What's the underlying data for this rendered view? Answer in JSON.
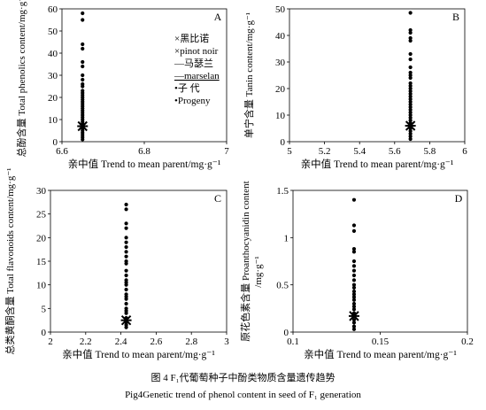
{
  "figure": {
    "caption_zh": "图 4 F₁代葡萄种子中酚类物质含量遗传趋势",
    "caption_en": "Pig4Genetic trend of phenol content in seed of F₁ generation"
  },
  "chart_data": [
    {
      "type": "scatter",
      "panel_label": "A",
      "xlabel": "亲中值 Trend to mean parent/mg·g⁻¹",
      "ylabel_zh": "总酚含量",
      "ylabel_en": "Total phenolics content/mg·g⁻¹",
      "xlim": [
        6.6,
        7
      ],
      "ylim": [
        0,
        60
      ],
      "xticks": [
        "6.6",
        "6.8",
        "7"
      ],
      "yticks": [
        "0",
        "10",
        "20",
        "30",
        "40",
        "50",
        "60"
      ],
      "grid": false,
      "legend": {
        "placement": "inside-right",
        "entries": [
          "×黑比诺",
          "×pinot noir",
          "—马瑟兰",
          "—marselan",
          "•子 代",
          "•Progeny"
        ]
      },
      "series": [
        {
          "name": "Progeny",
          "marker": "dot",
          "x": 6.65,
          "y": [
            58,
            55,
            44,
            42,
            36,
            34,
            30,
            28,
            26,
            25,
            23,
            22,
            21,
            20,
            19,
            18,
            17,
            16,
            15,
            14,
            13,
            12,
            11,
            10,
            9,
            8,
            7,
            6,
            5,
            4,
            3,
            2,
            1
          ]
        },
        {
          "name": "pinot noir",
          "marker": "x",
          "x": 6.65,
          "y": [
            7
          ]
        },
        {
          "name": "marselan",
          "marker": "dash",
          "x": 6.65,
          "y": [
            7
          ]
        }
      ]
    },
    {
      "type": "scatter",
      "panel_label": "B",
      "xlabel": "亲中值 Trend to mean parent/mg·g⁻¹",
      "ylabel_zh": "单宁含量",
      "ylabel_en": "Tanin content/mg·g⁻¹",
      "xlim": [
        5,
        6
      ],
      "ylim": [
        0,
        50
      ],
      "xticks": [
        "5",
        "5.2",
        "5.4",
        "5.6",
        "5.8",
        "6"
      ],
      "yticks": [
        "0",
        "10",
        "20",
        "30",
        "40",
        "50"
      ],
      "grid": false,
      "series": [
        {
          "name": "Progeny",
          "marker": "dot",
          "x": 5.69,
          "y": [
            48.5,
            42,
            41,
            39,
            38,
            33,
            31,
            28,
            26,
            25,
            24,
            22,
            21,
            20,
            19,
            18,
            17,
            16,
            15,
            14,
            13,
            12,
            11,
            10,
            9,
            8,
            7,
            6,
            5,
            4,
            3,
            2,
            1
          ]
        },
        {
          "name": "pinot noir",
          "marker": "x",
          "x": 5.69,
          "y": [
            6
          ]
        },
        {
          "name": "marselan",
          "marker": "dash",
          "x": 5.69,
          "y": [
            6
          ]
        }
      ]
    },
    {
      "type": "scatter",
      "panel_label": "C",
      "xlabel": "亲中值 Trend to mean parent/mg·g⁻¹",
      "ylabel_zh": "总类黄酮含量",
      "ylabel_en": "Total flavonoids content/mg·g⁻¹",
      "xlim": [
        2,
        3
      ],
      "ylim": [
        0,
        30
      ],
      "xticks": [
        "2",
        "2.2",
        "2.4",
        "2.6",
        "2.8",
        "3"
      ],
      "yticks": [
        "0",
        "5",
        "10",
        "15",
        "20",
        "25",
        "30"
      ],
      "grid": false,
      "series": [
        {
          "name": "Progeny",
          "marker": "dot",
          "x": 2.43,
          "y": [
            27,
            26,
            23,
            22,
            20,
            19,
            18,
            17,
            16,
            15,
            14.5,
            13,
            12,
            11,
            10.5,
            10,
            9,
            8,
            7.5,
            7,
            6,
            5,
            4.5,
            4,
            3,
            2,
            1.5,
            1
          ]
        },
        {
          "name": "pinot noir",
          "marker": "x",
          "x": 2.43,
          "y": [
            2.5
          ]
        },
        {
          "name": "marselan",
          "marker": "dash",
          "x": 2.43,
          "y": [
            2.5
          ]
        }
      ]
    },
    {
      "type": "scatter",
      "panel_label": "D",
      "xlabel": "亲中值 Trend to mean parent/mg·g⁻¹",
      "ylabel_zh": "原花色素含量",
      "ylabel_en": "Proanthocyanidin content",
      "ylabel_unit": "/mg·g⁻¹",
      "xlim": [
        0.1,
        0.2
      ],
      "ylim": [
        0,
        1.5
      ],
      "xticks": [
        "0.1",
        "0.15",
        "0.2"
      ],
      "yticks": [
        "0",
        "0.5",
        "1",
        "1.5"
      ],
      "grid": false,
      "series": [
        {
          "name": "Progeny",
          "marker": "dot",
          "x": 0.135,
          "y": [
            1.4,
            1.13,
            1.07,
            0.88,
            0.85,
            0.75,
            0.7,
            0.65,
            0.6,
            0.55,
            0.5,
            0.47,
            0.43,
            0.4,
            0.37,
            0.34,
            0.3,
            0.27,
            0.24,
            0.2,
            0.17,
            0.13,
            0.1,
            0.06,
            0.03
          ]
        },
        {
          "name": "pinot noir",
          "marker": "x",
          "x": 0.135,
          "y": [
            0.17
          ]
        },
        {
          "name": "marselan",
          "marker": "dash",
          "x": 0.135,
          "y": [
            0.17
          ]
        }
      ]
    }
  ]
}
